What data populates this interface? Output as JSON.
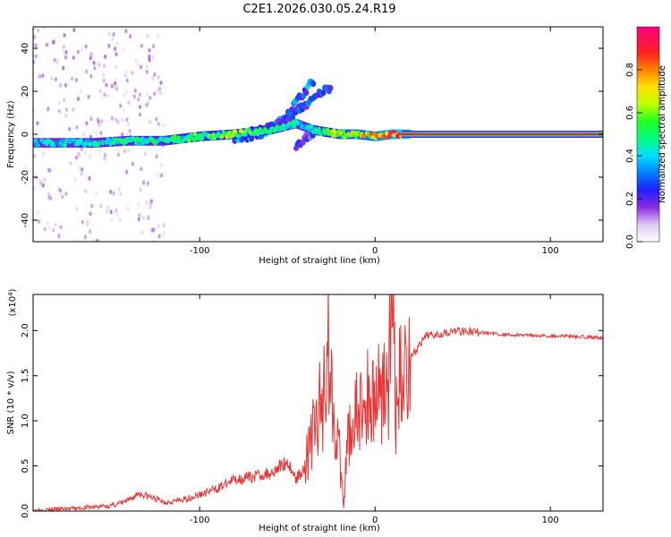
{
  "figure": {
    "title": "C2E1.2026.030.05.24.R19"
  },
  "chart_data": [
    {
      "type": "heatmap",
      "title": "C2E1.2026.030.05.24.R19",
      "xlabel": "Height of straight line (km)",
      "ylabel": "Frequency (Hz)",
      "xlim": [
        -195,
        130
      ],
      "ylim": [
        -50,
        50
      ],
      "xticks": [
        -100,
        0,
        100
      ],
      "xtick_labels": [
        "-100",
        "0",
        "100"
      ],
      "yticks": [
        -40,
        -20,
        0,
        20,
        40
      ],
      "ytick_labels": [
        "-40",
        "-20",
        "0",
        "20",
        "40"
      ],
      "colorbar": {
        "label": "Normalized spectral amplitude",
        "range": [
          0,
          1
        ],
        "ticks": [
          0.0,
          0.2,
          0.4,
          0.6,
          0.8
        ],
        "tick_labels": [
          "0.0",
          "0.2",
          "0.4",
          "0.6",
          "0.8"
        ]
      },
      "main_trace": {
        "x": [
          -195,
          -180,
          -160,
          -140,
          -120,
          -100,
          -80,
          -60,
          -45,
          -35,
          -28,
          -20,
          -10,
          0,
          10,
          20,
          130
        ],
        "y": [
          -4,
          -4,
          -4,
          -3,
          -3,
          -1,
          0,
          2,
          5,
          2,
          1,
          0,
          0,
          -1,
          0,
          0,
          0
        ],
        "amplitude": [
          0.35,
          0.4,
          0.42,
          0.45,
          0.45,
          0.5,
          0.55,
          0.5,
          0.4,
          0.45,
          0.5,
          0.6,
          0.65,
          0.7,
          0.8,
          0.9,
          0.9
        ]
      },
      "secondary_traces": [
        {
          "x": [
            -80,
            -65,
            -55,
            -48,
            -40,
            -35
          ],
          "y": [
            -2,
            0,
            5,
            12,
            20,
            25
          ],
          "amplitude": 0.3
        },
        {
          "x": [
            -75,
            -60,
            -50,
            -43,
            -37,
            -30,
            -25
          ],
          "y": [
            0,
            3,
            7,
            12,
            15,
            20,
            22
          ],
          "amplitude": 0.25
        },
        {
          "x": [
            -45,
            -40,
            -35
          ],
          "y": [
            -5,
            -2,
            0
          ],
          "amplitude": 0.2
        }
      ]
    },
    {
      "type": "line",
      "xlabel": "Height of straight line (km)",
      "ylabel": "SNR (10 * v/v)",
      "y_multiplier_label": "(x10",
      "y_multiplier_exp": "4",
      "y_multiplier_close": ")",
      "xlim": [
        -195,
        130
      ],
      "ylim": [
        0,
        2.4
      ],
      "xticks": [
        -100,
        0,
        100
      ],
      "xtick_labels": [
        "-100",
        "0",
        "100"
      ],
      "yticks": [
        0.0,
        0.5,
        1.0,
        1.5,
        2.0
      ],
      "ytick_labels": [
        "0.0",
        "0.5",
        "1.0",
        "1.5",
        "2.0"
      ],
      "series": [
        {
          "name": "SNR",
          "color": "#ee3333",
          "x": [
            -195,
            -170,
            -150,
            -140,
            -135,
            -120,
            -110,
            -100,
            -90,
            -80,
            -70,
            -60,
            -50,
            -45,
            -40,
            -35,
            -30,
            -27,
            -25,
            -22,
            -18,
            -15,
            -10,
            -5,
            0,
            5,
            8,
            10,
            12,
            15,
            20,
            30,
            40,
            50,
            60,
            70,
            80,
            90,
            100,
            110,
            120,
            130
          ],
          "y": [
            0.01,
            0.03,
            0.06,
            0.12,
            0.2,
            0.1,
            0.12,
            0.18,
            0.25,
            0.35,
            0.38,
            0.42,
            0.55,
            0.35,
            0.5,
            0.9,
            1.2,
            1.95,
            1.4,
            1.0,
            0.05,
            0.9,
            1.05,
            1.2,
            1.3,
            1.45,
            1.5,
            2.35,
            1.05,
            1.55,
            1.7,
            1.95,
            1.98,
            2.0,
            1.98,
            1.96,
            1.95,
            1.95,
            1.94,
            1.94,
            1.93,
            1.92
          ]
        }
      ]
    }
  ]
}
